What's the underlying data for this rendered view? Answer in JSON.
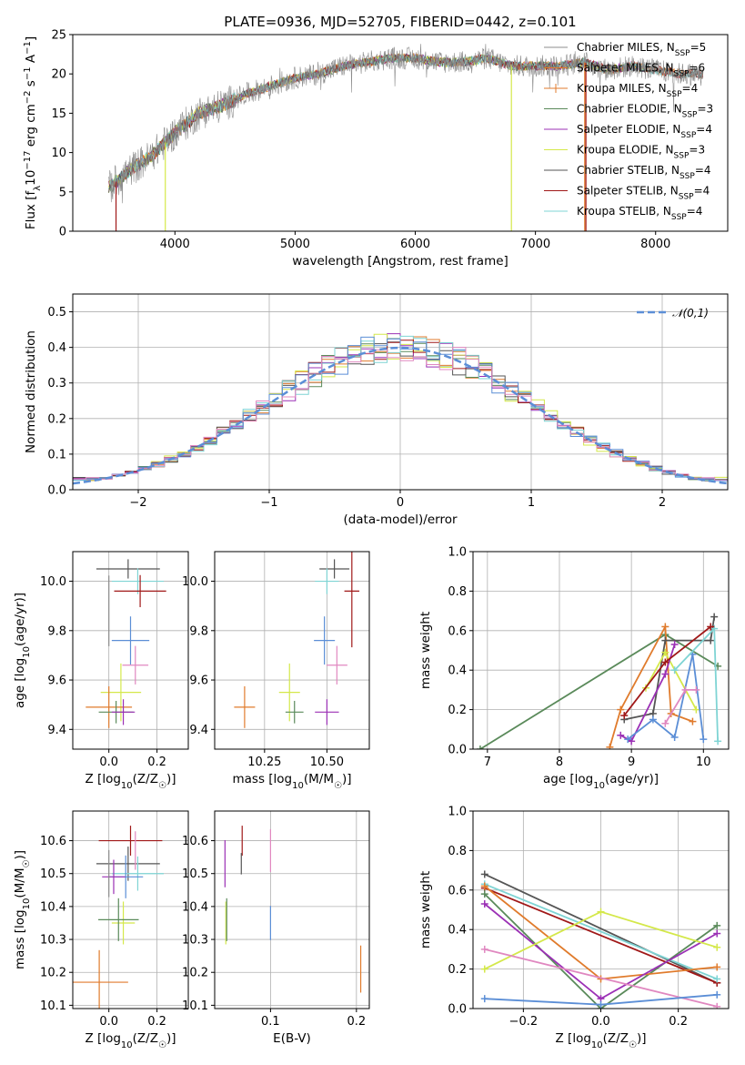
{
  "title": "PLATE=0936, MJD=52705, FIBERID=0442, z=0.101",
  "palette": {
    "chabrier_miles": "#8c8c8c",
    "salpeter_miles": "#e07b2c",
    "kroupa_miles": "#e07b2c",
    "chabrier_elodie": "#5a8a5a",
    "salpeter_elodie": "#9b30b5",
    "kroupa_elodie": "#d4e84a",
    "chabrier_stelib": "#555555",
    "salpeter_stelib": "#a01818",
    "kroupa_stelib": "#7fd4d4",
    "gaussian": "#5b8ed6",
    "extra_blue": "#5b8ed6",
    "extra_pink": "#e088c0"
  },
  "chart_data": [
    {
      "id": "spectrum",
      "type": "line",
      "xlabel": "wavelength [Angstrom, rest frame]",
      "ylabel": "Flux [f_λ10^-17 erg cm^-2 s^-1 A^-1]",
      "xlim": [
        3150,
        8600
      ],
      "ylim": [
        0,
        25
      ],
      "xticks": [
        4000,
        5000,
        6000,
        7000,
        8000
      ],
      "yticks": [
        0,
        5,
        10,
        15,
        20,
        25
      ],
      "grid": false,
      "legend_position": "right",
      "x": [
        3450,
        3600,
        3800,
        4000,
        4200,
        4400,
        4600,
        4800,
        5000,
        5200,
        5400,
        5600,
        5800,
        6000,
        6200,
        6400,
        6600,
        6800,
        7000,
        7200,
        7400,
        7600,
        7800,
        8000,
        8200,
        8400
      ],
      "y": [
        5.5,
        7.5,
        9.5,
        12.5,
        15,
        16,
        17.5,
        18.5,
        19.5,
        20,
        21,
        21.5,
        22,
        22,
        21.5,
        21.5,
        22,
        21,
        21,
        21,
        21.5,
        20.5,
        21,
        20.5,
        20,
        20
      ],
      "series_names": [
        "Chabrier MILES, N_SSP=5",
        "Salpeter MILES, N_SSP=6",
        "Kroupa MILES, N_SSP=4",
        "Chabrier ELODIE, N_SSP=3",
        "Salpeter ELODIE, N_SSP=4",
        "Kroupa ELODIE, N_SSP=3",
        "Chabrier STELIB, N_SSP=4",
        "Salpeter STELIB, N_SSP=4",
        "Kroupa STELIB, N_SSP=4"
      ],
      "legend": [
        {
          "base": "Chabrier MILES, N",
          "sub": "SSP",
          "tail": "=5"
        },
        {
          "base": "Salpeter MILES, N",
          "sub": "SSP",
          "tail": "=6"
        },
        {
          "base": "Kroupa MILES, N",
          "sub": "SSP",
          "tail": "=4"
        },
        {
          "base": "Chabrier ELODIE, N",
          "sub": "SSP",
          "tail": "=3"
        },
        {
          "base": "Salpeter ELODIE, N",
          "sub": "SSP",
          "tail": "=4"
        },
        {
          "base": "Kroupa ELODIE, N",
          "sub": "SSP",
          "tail": "=3"
        },
        {
          "base": "Chabrier STELIB, N",
          "sub": "SSP",
          "tail": "=4"
        },
        {
          "base": "Salpeter STELIB, N",
          "sub": "SSP",
          "tail": "=4"
        },
        {
          "base": "Kroupa STELIB, N",
          "sub": "SSP",
          "tail": "=4"
        }
      ]
    },
    {
      "id": "residuals",
      "type": "bar",
      "xlabel": "(data-model)/error",
      "ylabel": "Normed distribution",
      "xlim": [
        -2.5,
        2.5
      ],
      "ylim": [
        0,
        0.55
      ],
      "xticks": [
        -2,
        -1,
        0,
        1,
        2
      ],
      "yticks": [
        0.0,
        0.1,
        0.2,
        0.3,
        0.4,
        0.5
      ],
      "grid": true,
      "legend_label": "𝒩(0,1)",
      "legend_position": "top-right",
      "bin_width": 0.1
    },
    {
      "id": "age_vs_Z",
      "type": "scatter",
      "xlabel": "Z [log10(Z/Z☉)]",
      "ylabel": "age [log10(age/yr)]",
      "xlim": [
        -0.15,
        0.33
      ],
      "ylim": [
        9.32,
        10.12
      ],
      "xticks": [
        0.0,
        0.2
      ],
      "yticks": [
        9.4,
        9.6,
        9.8,
        10.0
      ],
      "grid": true,
      "points": [
        {
          "c": "chabrier_stelib",
          "x": 0.08,
          "y": 10.05,
          "xe": 0.22,
          "ye": 0.06
        },
        {
          "c": "kroupa_stelib",
          "x": 0.12,
          "y": 10.0,
          "xe": 0.18,
          "ye": 0.08
        },
        {
          "c": "salpeter_stelib",
          "x": 0.13,
          "y": 9.96,
          "xe": 0.18,
          "ye": 0.1
        },
        {
          "c": "extra_blue",
          "x": 0.09,
          "y": 9.76,
          "xe": 0.13,
          "ye": 0.15
        },
        {
          "c": "extra_pink",
          "x": 0.11,
          "y": 9.66,
          "xe": 0.09,
          "ye": 0.12
        },
        {
          "c": "kroupa_elodie",
          "x": 0.05,
          "y": 9.55,
          "xe": 0.14,
          "ye": 0.18
        },
        {
          "c": "salpeter_miles",
          "x": 0.0,
          "y": 9.49,
          "xe": 0.16,
          "ye": 0.13
        },
        {
          "c": "chabrier_elodie",
          "x": 0.03,
          "y": 9.47,
          "xe": 0.12,
          "ye": 0.07
        },
        {
          "c": "salpeter_elodie",
          "x": 0.06,
          "y": 9.47,
          "xe": 0.08,
          "ye": 0.08
        },
        {
          "c": "chabrier_miles",
          "x": 0.0,
          "y": 9.88,
          "xe": 0.0,
          "ye": 0.22
        }
      ]
    },
    {
      "id": "age_vs_mass",
      "type": "scatter",
      "xlabel": "mass [log10(M/M☉)]",
      "ylabel": "",
      "xlim": [
        10.05,
        10.67
      ],
      "ylim": [
        9.32,
        10.12
      ],
      "xticks": [
        10.25,
        10.5
      ],
      "yticks": [
        9.4,
        9.6,
        9.8,
        10.0
      ],
      "grid": true,
      "points": [
        {
          "c": "chabrier_stelib",
          "x": 10.53,
          "y": 10.05,
          "xe": 0.1,
          "ye": 0.06
        },
        {
          "c": "kroupa_stelib",
          "x": 10.5,
          "y": 10.0,
          "xe": 0.08,
          "ye": 0.08
        },
        {
          "c": "salpeter_stelib",
          "x": 10.6,
          "y": 9.96,
          "xe": 0.05,
          "ye": 0.35
        },
        {
          "c": "extra_blue",
          "x": 10.49,
          "y": 9.76,
          "xe": 0.07,
          "ye": 0.15
        },
        {
          "c": "extra_pink",
          "x": 10.54,
          "y": 9.66,
          "xe": 0.07,
          "ye": 0.12
        },
        {
          "c": "kroupa_elodie",
          "x": 10.35,
          "y": 9.55,
          "xe": 0.07,
          "ye": 0.18
        },
        {
          "c": "salpeter_miles",
          "x": 10.17,
          "y": 9.49,
          "xe": 0.07,
          "ye": 0.13
        },
        {
          "c": "chabrier_elodie",
          "x": 10.37,
          "y": 9.47,
          "xe": 0.06,
          "ye": 0.07
        },
        {
          "c": "salpeter_elodie",
          "x": 10.5,
          "y": 9.47,
          "xe": 0.08,
          "ye": 0.08
        }
      ]
    },
    {
      "id": "weight_vs_age",
      "type": "line",
      "xlabel": "age [log10(age/yr)]",
      "ylabel": "mass weight",
      "xlim": [
        6.8,
        10.35
      ],
      "ylim": [
        0,
        1.0
      ],
      "xticks": [
        7,
        8,
        9,
        10
      ],
      "yticks": [
        0.0,
        0.2,
        0.4,
        0.6,
        0.8,
        1.0
      ],
      "grid": true,
      "series": [
        {
          "c": "chabrier_elodie",
          "x": [
            6.9,
            9.47,
            10.2
          ],
          "y": [
            0.0,
            0.58,
            0.42
          ]
        },
        {
          "c": "salpeter_miles",
          "x": [
            8.7,
            8.85,
            9.47,
            9.55,
            9.85
          ],
          "y": [
            0.01,
            0.2,
            0.62,
            0.18,
            0.14
          ]
        },
        {
          "c": "chabrier_stelib",
          "x": [
            8.9,
            9.3,
            9.47,
            10.1,
            10.15
          ],
          "y": [
            0.15,
            0.18,
            0.55,
            0.55,
            0.67
          ]
        },
        {
          "c": "kroupa_elodie",
          "x": [
            9.2,
            9.47,
            9.9
          ],
          "y": [
            0.31,
            0.49,
            0.2
          ]
        },
        {
          "c": "salpeter_elodie",
          "x": [
            8.85,
            9.0,
            9.47,
            9.6
          ],
          "y": [
            0.07,
            0.04,
            0.38,
            0.53
          ]
        },
        {
          "c": "extra_blue",
          "x": [
            8.95,
            9.3,
            9.6,
            9.85,
            10.0
          ],
          "y": [
            0.05,
            0.15,
            0.06,
            0.48,
            0.05
          ]
        },
        {
          "c": "extra_pink",
          "x": [
            9.47,
            9.75,
            9.9
          ],
          "y": [
            0.13,
            0.3,
            0.3
          ]
        },
        {
          "c": "kroupa_stelib",
          "x": [
            9.6,
            10.15,
            10.2
          ],
          "y": [
            0.4,
            0.61,
            0.04
          ]
        },
        {
          "c": "salpeter_stelib",
          "x": [
            8.9,
            9.47,
            10.1
          ],
          "y": [
            0.17,
            0.44,
            0.62
          ]
        }
      ]
    },
    {
      "id": "mass_vs_Z",
      "type": "scatter",
      "xlabel": "Z [log10(Z/Z☉)]",
      "ylabel": "mass [log10(M/M☉)]",
      "xlim": [
        -0.15,
        0.33
      ],
      "ylim": [
        10.09,
        10.69
      ],
      "xticks": [
        0.0,
        0.2
      ],
      "yticks": [
        10.1,
        10.2,
        10.3,
        10.4,
        10.5,
        10.6
      ],
      "grid": true,
      "points": [
        {
          "c": "salpeter_stelib",
          "x": 0.09,
          "y": 10.6,
          "xe": 0.22,
          "ye": 0.07
        },
        {
          "c": "chabrier_stelib",
          "x": 0.08,
          "y": 10.53,
          "xe": 0.22,
          "ye": 0.08
        },
        {
          "c": "kroupa_stelib",
          "x": 0.12,
          "y": 10.5,
          "xe": 0.18,
          "ye": 0.08
        },
        {
          "c": "extra_blue",
          "x": 0.07,
          "y": 10.49,
          "xe": 0.12,
          "ye": 0.1
        },
        {
          "c": "salpeter_elodie",
          "x": 0.02,
          "y": 10.49,
          "xe": 0.08,
          "ye": 0.08
        },
        {
          "c": "extra_pink",
          "x": 0.11,
          "y": 10.57,
          "xe": 0.0,
          "ye": 0.09
        },
        {
          "c": "kroupa_elodie",
          "x": 0.06,
          "y": 10.35,
          "xe": 0.08,
          "ye": 0.1
        },
        {
          "c": "chabrier_elodie",
          "x": 0.04,
          "y": 10.36,
          "xe": 0.14,
          "ye": 0.1
        },
        {
          "c": "salpeter_miles",
          "x": -0.04,
          "y": 10.17,
          "xe": 0.2,
          "ye": 0.15
        },
        {
          "c": "chabrier_miles",
          "x": 0.0,
          "y": 10.5,
          "xe": 0.0,
          "ye": 0.11
        }
      ]
    },
    {
      "id": "mass_vs_EBV",
      "type": "scatter",
      "xlabel": "E(B-V)",
      "ylabel": "",
      "xlim": [
        0.035,
        0.215
      ],
      "ylim": [
        10.09,
        10.69
      ],
      "xticks": [
        0.1,
        0.2
      ],
      "yticks": [
        10.1,
        10.2,
        10.3,
        10.4,
        10.5,
        10.6
      ],
      "grid": true,
      "points": [
        {
          "c": "salpeter_elodie",
          "x": 0.047,
          "y": 10.53,
          "xe": 0,
          "ye": 0.11
        },
        {
          "c": "kroupa_elodie",
          "x": 0.048,
          "y": 10.35,
          "xe": 0,
          "ye": 0.1
        },
        {
          "c": "chabrier_elodie",
          "x": 0.049,
          "y": 10.36,
          "xe": 0,
          "ye": 0.1
        },
        {
          "c": "salpeter_stelib",
          "x": 0.067,
          "y": 10.6,
          "xe": 0,
          "ye": 0.07
        },
        {
          "c": "chabrier_stelib",
          "x": 0.066,
          "y": 10.53,
          "xe": 0,
          "ye": 0.05
        },
        {
          "c": "extra_pink",
          "x": 0.1,
          "y": 10.57,
          "xe": 0,
          "ye": 0.1
        },
        {
          "c": "extra_blue",
          "x": 0.1,
          "y": 10.35,
          "xe": 0,
          "ye": 0.08
        },
        {
          "c": "salpeter_miles",
          "x": 0.205,
          "y": 10.21,
          "xe": 0,
          "ye": 0.11
        }
      ]
    },
    {
      "id": "weight_vs_Z",
      "type": "line",
      "xlabel": "Z [log10(Z/Z☉)]",
      "ylabel": "mass weight",
      "xlim": [
        -0.33,
        0.33
      ],
      "ylim": [
        0,
        1.0
      ],
      "xticks": [
        -0.2,
        0.0,
        0.2
      ],
      "yticks": [
        0.0,
        0.2,
        0.4,
        0.6,
        0.8,
        1.0
      ],
      "grid": true,
      "series": [
        {
          "c": "chabrier_stelib",
          "x": [
            -0.3,
            0.3
          ],
          "y": [
            0.68,
            0.13
          ]
        },
        {
          "c": "salpeter_stelib",
          "x": [
            -0.3,
            0.3
          ],
          "y": [
            0.61,
            0.13
          ]
        },
        {
          "c": "kroupa_stelib",
          "x": [
            -0.3,
            0.3
          ],
          "y": [
            0.63,
            0.15
          ]
        },
        {
          "c": "chabrier_elodie",
          "x": [
            -0.3,
            0.0,
            0.3
          ],
          "y": [
            0.58,
            0.0,
            0.42
          ]
        },
        {
          "c": "salpeter_miles",
          "x": [
            -0.3,
            0.0,
            0.3
          ],
          "y": [
            0.62,
            0.15,
            0.21
          ]
        },
        {
          "c": "salpeter_elodie",
          "x": [
            -0.3,
            0.0,
            0.3
          ],
          "y": [
            0.53,
            0.05,
            0.38
          ]
        },
        {
          "c": "kroupa_elodie",
          "x": [
            -0.3,
            0.0,
            0.3
          ],
          "y": [
            0.2,
            0.49,
            0.31
          ]
        },
        {
          "c": "extra_pink",
          "x": [
            -0.3,
            0.3
          ],
          "y": [
            0.3,
            0.01
          ]
        },
        {
          "c": "extra_blue",
          "x": [
            -0.3,
            0.0,
            0.3
          ],
          "y": [
            0.05,
            0.02,
            0.07
          ]
        }
      ]
    }
  ]
}
